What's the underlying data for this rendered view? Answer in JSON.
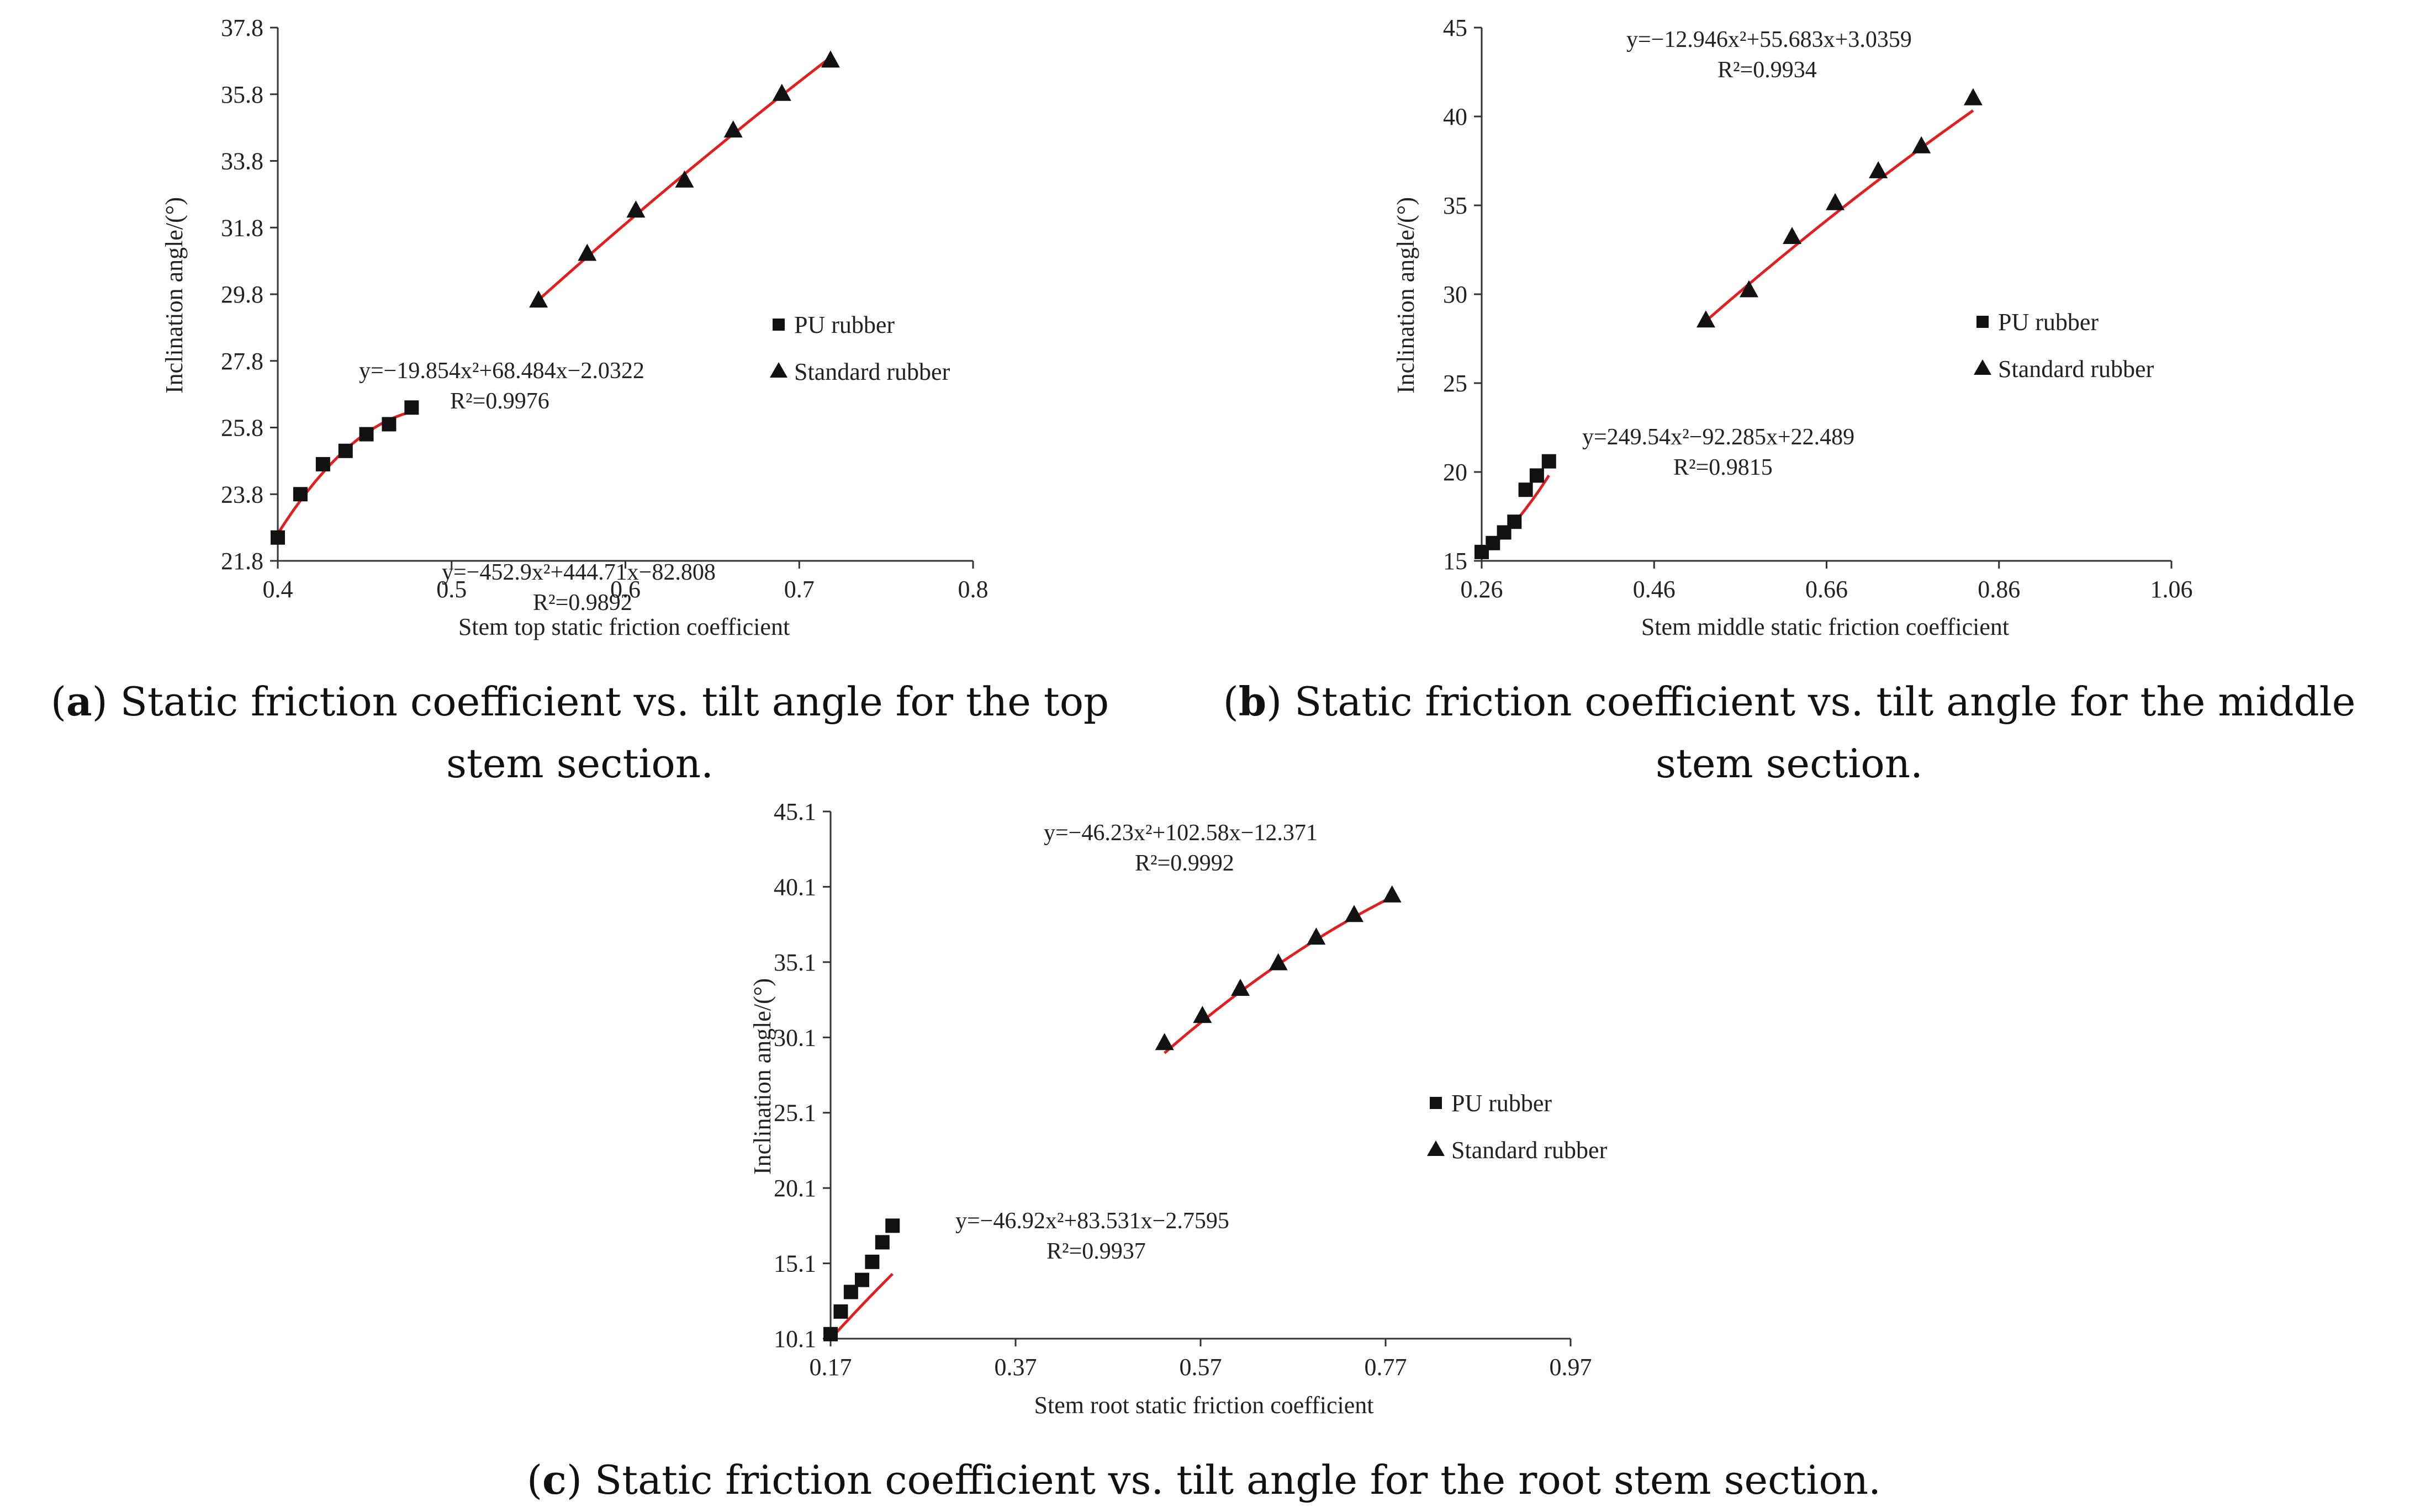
{
  "chart_data": [
    {
      "type": "scatter",
      "panel": "a",
      "xlabel": "Stem top static friction coefficient",
      "ylabel": "Inclination angle/(°)",
      "xlim": [
        0.4,
        0.8
      ],
      "ylim": [
        21.8,
        37.8
      ],
      "xticks": [
        "0.4",
        "0.5",
        "0.6",
        "0.7",
        "0.8"
      ],
      "yticks": [
        "21.8",
        "23.8",
        "25.8",
        "27.8",
        "29.8",
        "31.8",
        "33.8",
        "35.8",
        "37.8"
      ],
      "legend": [
        "PU rubber",
        "Standard rubber"
      ],
      "legend_position": "right",
      "series": [
        {
          "name": "PU rubber",
          "marker": "square",
          "x": [
            0.4,
            0.413,
            0.426,
            0.439,
            0.451,
            0.464,
            0.477
          ],
          "y": [
            22.5,
            23.8,
            24.7,
            25.1,
            25.6,
            25.9,
            26.4
          ],
          "fit": {
            "a": -452.9,
            "b": 444.71,
            "c": -82.808
          },
          "equation": "y=−452.9x²+444.71x−82.808",
          "r2": "R²=0.9892"
        },
        {
          "name": "Standard rubber",
          "marker": "triangle",
          "x": [
            0.55,
            0.578,
            0.606,
            0.634,
            0.662,
            0.69,
            0.718
          ],
          "y": [
            29.6,
            31.0,
            32.3,
            33.2,
            34.7,
            35.8,
            36.8
          ],
          "fit": {
            "a": -19.854,
            "b": 68.484,
            "c": -2.0322
          },
          "equation": "y=−19.854x²+68.484x−2.0322",
          "r2": "R²=0.9976"
        }
      ],
      "caption_label": "a",
      "caption_text": ") Static friction coefficient vs. tilt angle for the top stem section."
    },
    {
      "type": "scatter",
      "panel": "b",
      "xlabel": "Stem middle static friction coefficient",
      "ylabel": "Inclination angle/(°)",
      "xlim": [
        0.26,
        1.06
      ],
      "ylim": [
        15,
        45
      ],
      "xticks": [
        "0.26",
        "0.46",
        "0.66",
        "0.86",
        "1.06"
      ],
      "yticks": [
        "15",
        "20",
        "25",
        "30",
        "35",
        "40",
        "45"
      ],
      "legend": [
        "PU rubber",
        "Standard rubber"
      ],
      "legend_position": "right",
      "series": [
        {
          "name": "PU rubber",
          "marker": "square",
          "x": [
            0.26,
            0.273,
            0.286,
            0.298,
            0.311,
            0.324,
            0.338
          ],
          "y": [
            15.5,
            16.0,
            16.6,
            17.2,
            19.0,
            19.8,
            20.6
          ],
          "fit": {
            "a": 249.54,
            "b": -92.285,
            "c": 22.489
          },
          "equation": "y=249.54x²−92.285x+22.489",
          "r2": "R²=0.9815"
        },
        {
          "name": "Standard rubber",
          "marker": "triangle",
          "x": [
            0.52,
            0.57,
            0.62,
            0.67,
            0.72,
            0.77,
            0.83
          ],
          "y": [
            28.5,
            30.2,
            33.2,
            35.1,
            36.9,
            38.3,
            41.0
          ],
          "fit": {
            "a": -12.946,
            "b": 55.683,
            "c": 3.0359
          },
          "equation": "y=−12.946x²+55.683x+3.0359",
          "r2": "R²=0.9934"
        }
      ],
      "caption_label": "b",
      "caption_text": ") Static friction coefficient vs. tilt angle for the middle stem section."
    },
    {
      "type": "scatter",
      "panel": "c",
      "xlabel": "Stem root static friction coefficient",
      "ylabel": "Inclination angle/(°)",
      "xlim": [
        0.17,
        0.97
      ],
      "ylim": [
        10.1,
        45.1
      ],
      "xticks": [
        "0.17",
        "0.37",
        "0.57",
        "0.77",
        "0.97"
      ],
      "yticks": [
        "10.1",
        "15.1",
        "20.1",
        "25.1",
        "30.1",
        "35.1",
        "40.1",
        "45.1"
      ],
      "legend": [
        "PU rubber",
        "Standard rubber"
      ],
      "legend_position": "right",
      "series": [
        {
          "name": "PU rubber",
          "marker": "square",
          "x": [
            0.17,
            0.181,
            0.192,
            0.204,
            0.215,
            0.226,
            0.237
          ],
          "y": [
            10.4,
            11.9,
            13.2,
            14.0,
            15.2,
            16.5,
            17.6
          ],
          "fit": {
            "a": -46.92,
            "b": 83.531,
            "c": -2.7595
          },
          "equation": "y=−46.92x²+83.531x−2.7595",
          "r2": "R²=0.9937"
        },
        {
          "name": "Standard rubber",
          "marker": "triangle",
          "x": [
            0.531,
            0.572,
            0.613,
            0.654,
            0.695,
            0.736,
            0.777
          ],
          "y": [
            29.7,
            31.5,
            33.3,
            35.0,
            36.7,
            38.2,
            39.5
          ],
          "fit": {
            "a": -46.23,
            "b": 102.58,
            "c": -12.371
          },
          "equation": "y=−46.23x²+102.58x−12.371",
          "r2": "R²=0.9992"
        }
      ],
      "caption_label": "c",
      "caption_text": ") Static friction coefficient vs. tilt angle for the root stem section."
    }
  ],
  "captions": {
    "a": {
      "open": "(",
      "label": "a",
      "text": ") Static friction coefficient vs. tilt angle for the top stem section."
    },
    "b": {
      "open": "(",
      "label": "b",
      "text": ") Static friction coefficient vs. tilt angle for the middle stem section."
    },
    "c": {
      "open": "(",
      "label": "c",
      "text": ") Static friction coefficient vs. tilt angle for the root stem section."
    }
  },
  "colors": {
    "fit_line": "#e02020",
    "marker": "#111111",
    "axis": "#333333"
  }
}
